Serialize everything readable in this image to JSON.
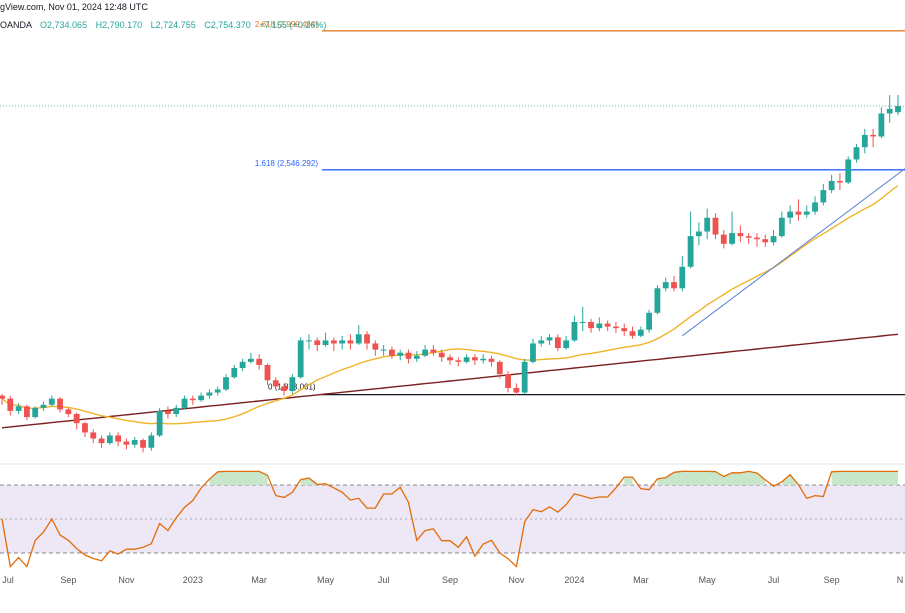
{
  "header": {
    "source_line": "gView.com, Nov 01, 2024 12:48 UTC",
    "symbol_line": "OANDA",
    "open": "O2,734.065",
    "high": "H2,790.170",
    "low": "L2,724.755",
    "close": "C2,754.370",
    "change": "+7.155 (+0.26%)"
  },
  "colors": {
    "up": "#26a69a",
    "down": "#ef5350",
    "ma_fast": "#f0b429",
    "ma_slow": "#7b1f1f",
    "fib_2618": "#e07b26",
    "fib_1618": "#2962ff",
    "fib_zero": "#131722",
    "trendline": "#5b7fd6",
    "rsi_line": "#e36c0a",
    "rsi_band": "#ede7f6",
    "rsi_fill": "#c8e6c9"
  },
  "chart_data": [
    {
      "type": "candlestick",
      "interval": "weekly",
      "x_ticks": [
        "Jul",
        "Sep",
        "Nov",
        "2023",
        "Mar",
        "May",
        "Jul",
        "Sep",
        "Nov",
        "2024",
        "Mar",
        "May",
        "Jul",
        "Sep",
        "N"
      ],
      "ylim": [
        1600,
        3100
      ],
      "fib_levels": [
        {
          "label": "2.618 (2,999.464)",
          "value": 2999.464
        },
        {
          "label": "1.618 (2,546.292)",
          "value": 2546.292
        },
        {
          "label": "0 (1,813.061)",
          "value": 1813.061
        }
      ],
      "last_price": 2754.37,
      "candles": [
        [
          1810,
          1800,
          1780,
          1815
        ],
        [
          1800,
          1760,
          1745,
          1810
        ],
        [
          1760,
          1775,
          1750,
          1785
        ],
        [
          1775,
          1740,
          1730,
          1780
        ],
        [
          1740,
          1770,
          1735,
          1775
        ],
        [
          1770,
          1780,
          1760,
          1790
        ],
        [
          1780,
          1800,
          1775,
          1810
        ],
        [
          1800,
          1765,
          1755,
          1805
        ],
        [
          1765,
          1750,
          1740,
          1770
        ],
        [
          1750,
          1720,
          1700,
          1755
        ],
        [
          1720,
          1690,
          1675,
          1725
        ],
        [
          1690,
          1670,
          1655,
          1700
        ],
        [
          1670,
          1655,
          1640,
          1680
        ],
        [
          1655,
          1680,
          1650,
          1690
        ],
        [
          1680,
          1660,
          1645,
          1690
        ],
        [
          1660,
          1650,
          1635,
          1670
        ],
        [
          1650,
          1665,
          1640,
          1675
        ],
        [
          1665,
          1640,
          1625,
          1670
        ],
        [
          1640,
          1680,
          1630,
          1690
        ],
        [
          1680,
          1760,
          1675,
          1770
        ],
        [
          1760,
          1750,
          1735,
          1775
        ],
        [
          1750,
          1770,
          1740,
          1780
        ],
        [
          1770,
          1800,
          1765,
          1810
        ],
        [
          1800,
          1795,
          1780,
          1810
        ],
        [
          1795,
          1810,
          1790,
          1820
        ],
        [
          1810,
          1820,
          1800,
          1830
        ],
        [
          1820,
          1830,
          1810,
          1840
        ],
        [
          1830,
          1870,
          1825,
          1880
        ],
        [
          1870,
          1900,
          1865,
          1910
        ],
        [
          1900,
          1920,
          1890,
          1930
        ],
        [
          1920,
          1930,
          1915,
          1950
        ],
        [
          1930,
          1910,
          1895,
          1945
        ],
        [
          1910,
          1860,
          1845,
          1915
        ],
        [
          1860,
          1840,
          1830,
          1870
        ],
        [
          1840,
          1825,
          1810,
          1850
        ],
        [
          1825,
          1870,
          1815,
          1880
        ],
        [
          1870,
          1990,
          1865,
          2000
        ],
        [
          1990,
          1990,
          1960,
          2010
        ],
        [
          1990,
          1975,
          1955,
          2000
        ],
        [
          1975,
          1990,
          1970,
          2015
        ],
        [
          1990,
          1980,
          1955,
          2000
        ],
        [
          1980,
          1990,
          1960,
          2005
        ],
        [
          1990,
          1980,
          1960,
          2010
        ],
        [
          1980,
          2010,
          1975,
          2040
        ],
        [
          2010,
          1980,
          1960,
          2020
        ],
        [
          1980,
          1960,
          1940,
          1990
        ],
        [
          1960,
          1960,
          1940,
          1975
        ],
        [
          1960,
          1940,
          1930,
          1970
        ],
        [
          1940,
          1950,
          1925,
          1960
        ],
        [
          1950,
          1930,
          1915,
          1960
        ],
        [
          1930,
          1940,
          1920,
          1955
        ],
        [
          1940,
          1960,
          1935,
          1975
        ],
        [
          1960,
          1950,
          1940,
          1975
        ],
        [
          1950,
          1935,
          1920,
          1960
        ],
        [
          1935,
          1925,
          1910,
          1945
        ],
        [
          1925,
          1920,
          1905,
          1935
        ],
        [
          1920,
          1935,
          1915,
          1945
        ],
        [
          1935,
          1925,
          1910,
          1945
        ],
        [
          1925,
          1930,
          1915,
          1945
        ],
        [
          1930,
          1920,
          1905,
          1940
        ],
        [
          1920,
          1880,
          1865,
          1925
        ],
        [
          1880,
          1835,
          1820,
          1890
        ],
        [
          1835,
          1820,
          1810,
          1850
        ],
        [
          1820,
          1920,
          1815,
          1930
        ],
        [
          1920,
          1980,
          1915,
          1995
        ],
        [
          1980,
          1990,
          1970,
          2005
        ],
        [
          1990,
          2000,
          1975,
          2010
        ],
        [
          2000,
          1965,
          1955,
          2010
        ],
        [
          1965,
          1990,
          1960,
          2005
        ],
        [
          1990,
          2050,
          1985,
          2070
        ],
        [
          2050,
          2050,
          2020,
          2100
        ],
        [
          2050,
          2030,
          2015,
          2060
        ],
        [
          2030,
          2045,
          2020,
          2065
        ],
        [
          2045,
          2035,
          2020,
          2055
        ],
        [
          2035,
          2030,
          2015,
          2050
        ],
        [
          2030,
          2020,
          2005,
          2045
        ],
        [
          2020,
          2005,
          1995,
          2035
        ],
        [
          2005,
          2025,
          2000,
          2035
        ],
        [
          2025,
          2080,
          2015,
          2090
        ],
        [
          2080,
          2160,
          2075,
          2170
        ],
        [
          2160,
          2180,
          2150,
          2195
        ],
        [
          2180,
          2160,
          2150,
          2200
        ],
        [
          2160,
          2230,
          2150,
          2265
        ],
        [
          2230,
          2330,
          2225,
          2410
        ],
        [
          2330,
          2345,
          2300,
          2375
        ],
        [
          2345,
          2390,
          2320,
          2420
        ],
        [
          2390,
          2335,
          2320,
          2405
        ],
        [
          2335,
          2305,
          2290,
          2350
        ],
        [
          2305,
          2340,
          2300,
          2410
        ],
        [
          2340,
          2330,
          2310,
          2365
        ],
        [
          2330,
          2325,
          2305,
          2340
        ],
        [
          2325,
          2320,
          2295,
          2340
        ],
        [
          2320,
          2310,
          2295,
          2335
        ],
        [
          2310,
          2330,
          2300,
          2350
        ],
        [
          2330,
          2390,
          2325,
          2410
        ],
        [
          2390,
          2410,
          2370,
          2430
        ],
        [
          2410,
          2400,
          2380,
          2450
        ],
        [
          2400,
          2410,
          2390,
          2430
        ],
        [
          2410,
          2440,
          2400,
          2460
        ],
        [
          2440,
          2480,
          2430,
          2500
        ],
        [
          2480,
          2510,
          2470,
          2530
        ],
        [
          2510,
          2505,
          2480,
          2535
        ],
        [
          2505,
          2580,
          2500,
          2590
        ],
        [
          2580,
          2620,
          2570,
          2630
        ],
        [
          2620,
          2660,
          2600,
          2680
        ],
        [
          2660,
          2655,
          2620,
          2680
        ],
        [
          2655,
          2730,
          2650,
          2750
        ],
        [
          2730,
          2745,
          2700,
          2790
        ],
        [
          2734.065,
          2754.37,
          2724.755,
          2790.17
        ]
      ]
    },
    {
      "type": "line",
      "panel": "oscillator",
      "ylim": [
        20,
        80
      ],
      "bands": [
        30,
        50,
        70
      ]
    }
  ]
}
